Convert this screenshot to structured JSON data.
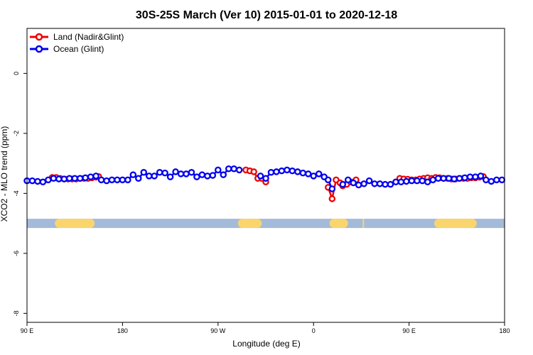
{
  "chart_data": {
    "type": "line",
    "title": "30S-25S March (Ver 10)   2015-01-01 to 2020-12-18",
    "xlabel": "Longitude (deg E)",
    "ylabel": "XCO2 - MLO trend (ppm)",
    "xlim": [
      90,
      450
    ],
    "ylim": [
      -8.3,
      1.5
    ],
    "x_ticks": [
      {
        "value": 90,
        "label": "90 E"
      },
      {
        "value": 162,
        "label": "180"
      },
      {
        "value": 234,
        "label": "90 W"
      },
      {
        "value": 306,
        "label": "0"
      },
      {
        "value": 378,
        "label": "90 E"
      },
      {
        "value": 450,
        "label": "180"
      }
    ],
    "y_ticks": [
      {
        "value": 0,
        "label": "0"
      },
      {
        "value": -2,
        "label": "-2"
      },
      {
        "value": -4,
        "label": "-4"
      },
      {
        "value": -6,
        "label": "-6"
      },
      {
        "value": -8,
        "label": "-8"
      }
    ],
    "land_mask": {
      "y": -5.0,
      "colors": {
        "ocean": "#a4bad9",
        "land": "#fad56e"
      },
      "land_segments": [
        [
          111,
          141
        ],
        [
          249,
          267
        ],
        [
          318,
          332
        ],
        [
          343,
          344
        ],
        [
          397,
          429
        ]
      ]
    },
    "legend": {
      "position": "top-left"
    },
    "series": [
      {
        "name": "Land (Nadir&Glint)",
        "color": "#ee0000",
        "x": [
          109,
          112,
          115,
          118,
          121,
          124,
          127,
          130,
          133,
          136,
          139,
          142,
          144,
          255,
          258,
          261,
          264,
          267,
          270,
          317,
          320,
          323,
          326,
          328,
          331,
          334,
          338,
          371,
          374,
          377,
          380,
          383,
          386,
          389,
          392,
          395,
          398,
          401,
          404,
          407,
          410,
          413,
          416,
          419,
          422,
          425,
          428,
          431,
          434
        ],
        "values": [
          -3.47,
          -3.47,
          -3.5,
          -3.52,
          -3.52,
          -3.52,
          -3.52,
          -3.5,
          -3.5,
          -3.5,
          -3.48,
          -3.46,
          -3.44,
          -3.22,
          -3.25,
          -3.28,
          -3.5,
          -3.5,
          -3.62,
          -3.8,
          -4.18,
          -3.55,
          -3.65,
          -3.75,
          -3.7,
          -3.62,
          -3.55,
          -3.5,
          -3.52,
          -3.53,
          -3.55,
          -3.55,
          -3.52,
          -3.5,
          -3.48,
          -3.5,
          -3.47,
          -3.48,
          -3.5,
          -3.5,
          -3.52,
          -3.52,
          -3.5,
          -3.5,
          -3.5,
          -3.48,
          -3.48,
          -3.46,
          -3.44
        ]
      },
      {
        "name": "Ocean (Glint)",
        "color": "#0000ee",
        "x": [
          90,
          94,
          98,
          102,
          106,
          110,
          114,
          118,
          122,
          126,
          130,
          134,
          138,
          142,
          146,
          150,
          154,
          158,
          162,
          166,
          170,
          174,
          178,
          182,
          186,
          190,
          194,
          198,
          202,
          206,
          210,
          214,
          218,
          222,
          226,
          230,
          234,
          238,
          242,
          246,
          250,
          266,
          270,
          274,
          278,
          282,
          286,
          290,
          294,
          298,
          302,
          306,
          310,
          314,
          317,
          320,
          328,
          332,
          336,
          340,
          344,
          348,
          352,
          356,
          360,
          364,
          368,
          372,
          376,
          380,
          384,
          388,
          392,
          396,
          400,
          404,
          408,
          412,
          416,
          420,
          424,
          428,
          432,
          436,
          440,
          444,
          448
        ],
        "values": [
          -3.58,
          -3.58,
          -3.6,
          -3.62,
          -3.55,
          -3.5,
          -3.52,
          -3.52,
          -3.5,
          -3.5,
          -3.5,
          -3.48,
          -3.45,
          -3.42,
          -3.55,
          -3.58,
          -3.55,
          -3.55,
          -3.55,
          -3.55,
          -3.38,
          -3.5,
          -3.3,
          -3.42,
          -3.42,
          -3.3,
          -3.32,
          -3.45,
          -3.28,
          -3.35,
          -3.35,
          -3.3,
          -3.45,
          -3.38,
          -3.42,
          -3.4,
          -3.22,
          -3.38,
          -3.18,
          -3.18,
          -3.22,
          -3.42,
          -3.5,
          -3.3,
          -3.28,
          -3.25,
          -3.22,
          -3.25,
          -3.28,
          -3.32,
          -3.35,
          -3.42,
          -3.35,
          -3.45,
          -3.55,
          -3.85,
          -3.7,
          -3.55,
          -3.65,
          -3.72,
          -3.68,
          -3.58,
          -3.68,
          -3.68,
          -3.7,
          -3.7,
          -3.62,
          -3.62,
          -3.6,
          -3.58,
          -3.58,
          -3.58,
          -3.62,
          -3.55,
          -3.5,
          -3.5,
          -3.5,
          -3.52,
          -3.5,
          -3.48,
          -3.45,
          -3.45,
          -3.42,
          -3.55,
          -3.6,
          -3.55,
          -3.55
        ]
      }
    ]
  }
}
